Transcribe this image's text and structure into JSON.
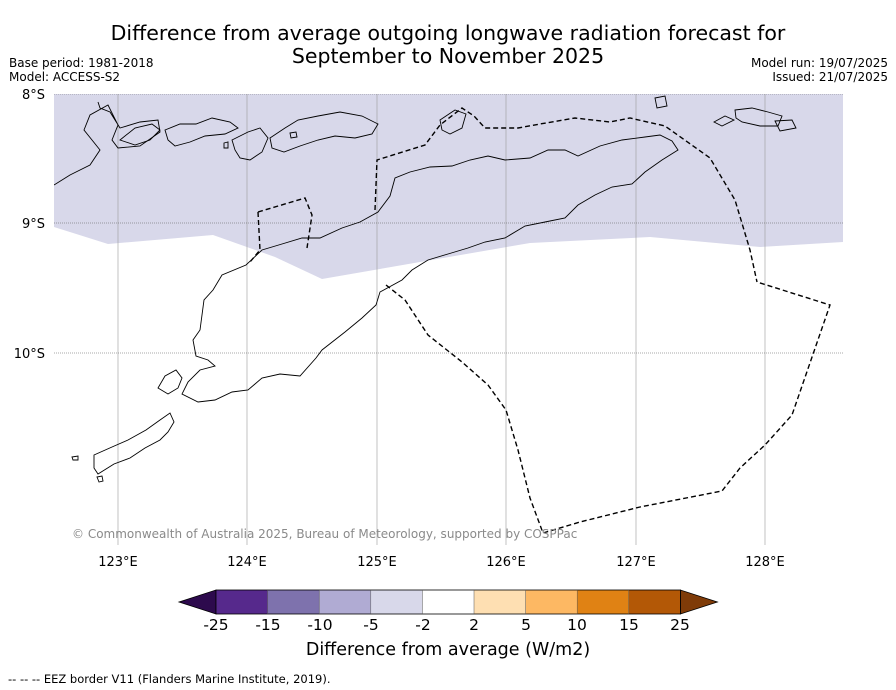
{
  "title": {
    "line1": "Difference from average outgoing longwave radiation forecast for",
    "line2": "September to November 2025"
  },
  "meta": {
    "base_period": "Base period: 1981-2018",
    "model": "Model: ACCESS-S2",
    "model_run": "Model run: 19/07/2025",
    "issued": "Issued: 21/07/2025"
  },
  "map": {
    "lat_labels": [
      "8°S",
      "9°S",
      "10°S"
    ],
    "lon_labels": [
      "123°E",
      "124°E",
      "125°E",
      "126°E",
      "127°E",
      "128°E"
    ],
    "credit": "© Commonwealth of Australia 2025, Bureau of Meteorology, supported by COSPPac",
    "anomaly_fill_color": "#d8d8ea"
  },
  "colorbar": {
    "title": "Difference from average (W/m2)",
    "labels": [
      "-25",
      "-15",
      "-10",
      "-5",
      "-2",
      "2",
      "5",
      "10",
      "15",
      "25"
    ],
    "colors": [
      "#2d0a4d",
      "#56298c",
      "#7e72ad",
      "#b0abd3",
      "#d8d8ea",
      "#ffffff",
      "#fedfb2",
      "#fdb863",
      "#e08214",
      "#b35806",
      "#7f3b08"
    ]
  },
  "footer": "--  --  -- EEZ border V11 (Flanders Marine Institute, 2019)."
}
